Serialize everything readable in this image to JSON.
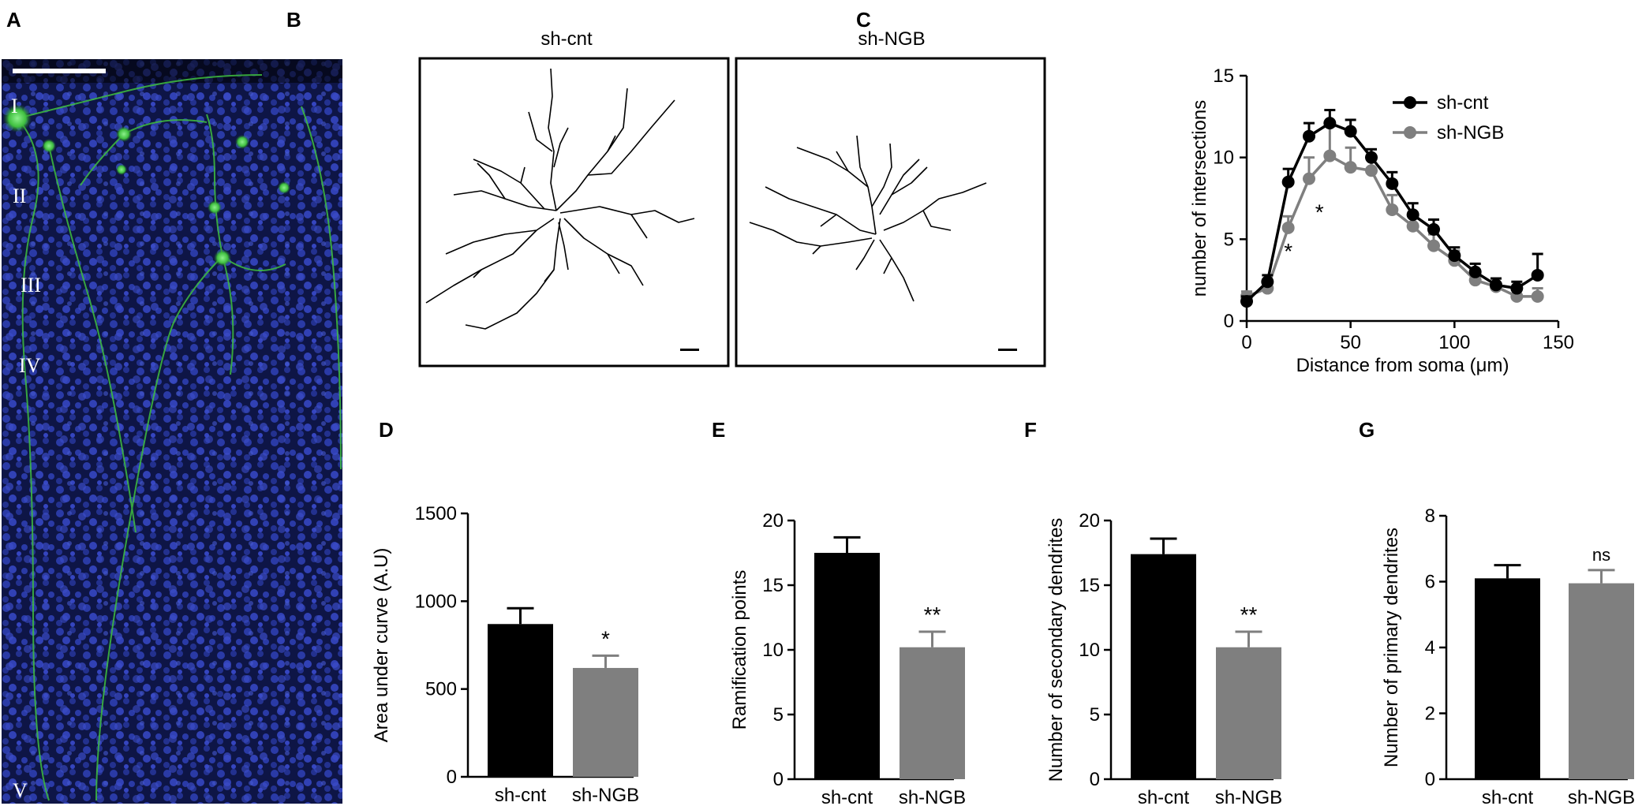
{
  "panels": {
    "A": {
      "letter": "A",
      "layers": [
        "I",
        "II",
        "III",
        "IV",
        "V"
      ]
    },
    "B": {
      "letter": "B",
      "titles": [
        "sh-cnt",
        "sh-NGB"
      ]
    },
    "C": {
      "letter": "C"
    },
    "D": {
      "letter": "D"
    },
    "E": {
      "letter": "E"
    },
    "F": {
      "letter": "F"
    },
    "G": {
      "letter": "G"
    }
  },
  "colors": {
    "cnt": "#000000",
    "ngb": "#7f7f7f",
    "cell_green": "#3fbf3f",
    "nuclei_blue": "#1f2f8f"
  },
  "chart_data": [
    {
      "id": "C",
      "type": "line",
      "xlabel": "Distance from soma (μm)",
      "ylabel": "number of intersections",
      "xlim": [
        0,
        150
      ],
      "ylim": [
        0,
        15
      ],
      "xticks": [
        0,
        50,
        100,
        150
      ],
      "yticks": [
        0,
        5,
        10,
        15
      ],
      "legend": "top-right",
      "series": [
        {
          "name": "sh-cnt",
          "x": [
            0,
            10,
            20,
            30,
            40,
            50,
            60,
            70,
            80,
            90,
            100,
            110,
            120,
            130,
            140
          ],
          "values": [
            1.2,
            2.4,
            8.5,
            11.3,
            12.1,
            11.6,
            10.0,
            8.4,
            6.5,
            5.6,
            4.0,
            3.0,
            2.2,
            2.0,
            2.8
          ],
          "errors": [
            0.3,
            0.4,
            0.8,
            0.8,
            0.8,
            0.7,
            0.5,
            0.7,
            0.7,
            0.6,
            0.5,
            0.5,
            0.4,
            0.4,
            1.3
          ]
        },
        {
          "name": "sh-NGB",
          "x": [
            0,
            10,
            20,
            30,
            40,
            50,
            60,
            70,
            80,
            90,
            100,
            110,
            120,
            130,
            140
          ],
          "values": [
            1.5,
            2.0,
            5.7,
            8.7,
            10.1,
            9.4,
            9.2,
            6.8,
            5.8,
            4.6,
            3.7,
            2.5,
            2.1,
            1.5,
            1.5
          ],
          "errors": [
            0.3,
            0.4,
            0.7,
            1.3,
            1.8,
            1.2,
            0.9,
            0.9,
            0.8,
            0.7,
            0.6,
            0.5,
            0.5,
            0.4,
            0.5
          ]
        }
      ],
      "annotations": [
        {
          "x": 20,
          "y": 3.8,
          "text": "*"
        },
        {
          "x": 35,
          "y": 6.2,
          "text": "*"
        }
      ]
    },
    {
      "id": "D",
      "type": "bar",
      "categories": [
        "sh-cnt",
        "sh-NGB"
      ],
      "values": [
        870,
        620
      ],
      "errors": [
        90,
        70
      ],
      "ylabel": "Area under curve (A.U)",
      "ylim": [
        0,
        1500
      ],
      "yticks": [
        0,
        500,
        1000,
        1500
      ],
      "significance": "*"
    },
    {
      "id": "E",
      "type": "bar",
      "categories": [
        "sh-cnt",
        "sh-NGB"
      ],
      "values": [
        17.5,
        10.2
      ],
      "errors": [
        1.2,
        1.2
      ],
      "ylabel": "Ramification points",
      "ylim": [
        0,
        20
      ],
      "yticks": [
        0,
        5,
        10,
        15,
        20
      ],
      "significance": "**"
    },
    {
      "id": "F",
      "type": "bar",
      "categories": [
        "sh-cnt",
        "sh-NGB"
      ],
      "values": [
        17.4,
        10.2
      ],
      "errors": [
        1.2,
        1.2
      ],
      "ylabel": "Number of secondary dendrites",
      "ylim": [
        0,
        20
      ],
      "yticks": [
        0,
        5,
        10,
        15,
        20
      ],
      "significance": "**"
    },
    {
      "id": "G",
      "type": "bar",
      "categories": [
        "sh-cnt",
        "sh-NGB"
      ],
      "values": [
        6.1,
        5.95
      ],
      "errors": [
        0.4,
        0.4
      ],
      "ylabel": "Number of primary dendrites",
      "ylim": [
        0,
        8
      ],
      "yticks": [
        0,
        2,
        4,
        6,
        8
      ],
      "significance": "ns"
    }
  ]
}
